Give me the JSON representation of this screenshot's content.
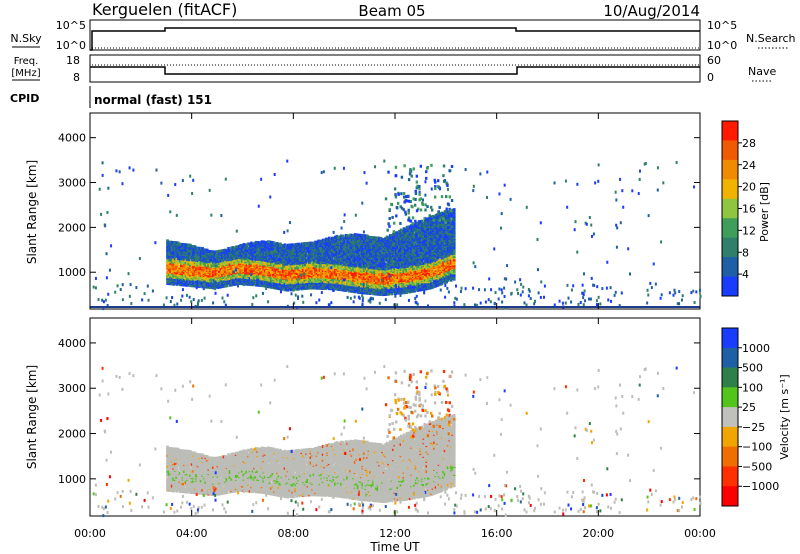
{
  "header": {
    "station": "Kerguelen (fitACF)",
    "beam": "Beam 05",
    "date": "10/Aug/2014"
  },
  "noise_panel": {
    "left_label": "N.Sky",
    "left_ticks": [
      "10^5",
      "10^0"
    ],
    "right_ticks": [
      "10^5",
      "10^0"
    ],
    "right_label": "N.Search"
  },
  "freq_panel": {
    "left_label_1": "Freq.",
    "left_label_2": "[MHz]",
    "left_ticks": [
      "18",
      "8"
    ],
    "right_ticks": [
      "60",
      "0"
    ],
    "right_label": "Nave"
  },
  "cpid_panel": {
    "label": "CPID",
    "mode_text": "normal (fast) 151"
  },
  "colors": {
    "power": [
      "#1a3cff",
      "#1e5fa6",
      "#2f7f6a",
      "#3f9f5a",
      "#8ec63f",
      "#f0b400",
      "#f08a00",
      "#f05a00",
      "#ff1a00"
    ],
    "velocity": [
      "#1a3cff",
      "#1e5fa6",
      "#2f7f4a",
      "#52c41a",
      "#c0c0bc",
      "#f0a500",
      "#f06e00",
      "#ff3000",
      "#ff0000"
    ],
    "ground_scatter": "#bdbdb8",
    "line": "#000000"
  },
  "chart_data": [
    {
      "type": "line",
      "title": "N.Sky / N.Search",
      "x": [
        "00:00",
        "03:00",
        "14:00",
        "17:00",
        "24:00"
      ],
      "series": [
        {
          "name": "N.Sky",
          "values": [
            "10^5",
            "10^5",
            "10^5",
            "10^5",
            "10^5"
          ]
        },
        {
          "name": "N.Search",
          "values": [
            null,
            null,
            null,
            null,
            null
          ]
        }
      ]
    },
    {
      "type": "line",
      "title": "Freq. [MHz] / Nave",
      "x": [
        "00:00",
        "03:00",
        "14:00",
        "17:00",
        "24:00"
      ],
      "series": [
        {
          "name": "Freq.",
          "values": [
            14.5,
            12.5,
            12.5,
            14.5,
            14.5
          ]
        },
        {
          "name": "Nave",
          "values": [
            null,
            null,
            null,
            null,
            null
          ]
        }
      ]
    },
    {
      "type": "heatmap",
      "xlabel": "",
      "ylabel": "Slant Range [km]",
      "ylim": [
        180,
        4550
      ],
      "yticks": [
        "1000",
        "2000",
        "3000",
        "4000"
      ],
      "colorbar": {
        "label": "Power [dB]",
        "ticks": [
          "4",
          "8",
          "12",
          "16",
          "20",
          "24",
          "28"
        ]
      }
    },
    {
      "type": "heatmap",
      "xlabel": "Time UT",
      "ylabel": "Slant Range [km]",
      "ylim": [
        180,
        4550
      ],
      "x_ticks": [
        "00:00",
        "04:00",
        "08:00",
        "12:00",
        "16:00",
        "20:00",
        "00:00"
      ],
      "yticks": [
        "1000",
        "2000",
        "3000",
        "4000"
      ],
      "colorbar": {
        "label": "Velocity [m s⁻¹]",
        "ticks": [
          "1000",
          "500",
          "100",
          "25",
          "−25",
          "−100",
          "−500",
          "−1000"
        ]
      }
    }
  ],
  "echo_band": {
    "start_hour": 3.0,
    "end_hour": 14.3,
    "center_km": [
      1100,
      1050,
      1000,
      1100,
      1050,
      950,
      1000,
      980,
      900,
      850,
      900,
      1000,
      1200
    ],
    "upper_km": [
      1700,
      1600,
      1450,
      1600,
      1700,
      1600,
      1650,
      1800,
      1850,
      1750,
      2000,
      2250,
      2400
    ]
  }
}
